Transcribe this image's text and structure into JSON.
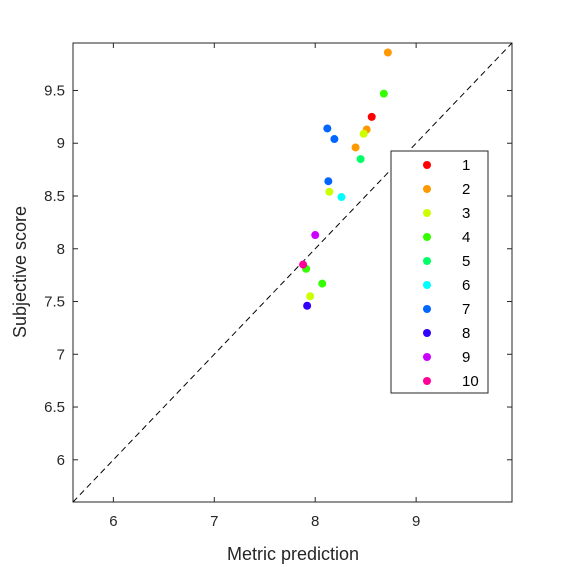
{
  "chart_data": {
    "type": "scatter",
    "xlabel": "Metric prediction",
    "ylabel": "Subjective score",
    "xlim": [
      5.6,
      9.95
    ],
    "ylim": [
      5.6,
      9.95
    ],
    "x_ticks": [
      "6",
      "7",
      "8",
      "9"
    ],
    "y_ticks": [
      "6",
      "6.5",
      "7",
      "7.5",
      "8",
      "8.5",
      "9",
      "9.5"
    ],
    "reference_line": "y = x (dashed)",
    "grid": false,
    "legend_position": "right-center",
    "series": [
      {
        "name": "1",
        "color": "#ff0000",
        "points": [
          [
            8.56,
            9.25
          ]
        ]
      },
      {
        "name": "2",
        "color": "#ff9900",
        "points": [
          [
            8.72,
            9.86
          ],
          [
            8.51,
            9.13
          ],
          [
            8.4,
            8.96
          ]
        ]
      },
      {
        "name": "3",
        "color": "#ccff00",
        "points": [
          [
            8.48,
            9.09
          ],
          [
            8.14,
            8.54
          ],
          [
            7.95,
            7.55
          ]
        ]
      },
      {
        "name": "4",
        "color": "#33ff00",
        "points": [
          [
            8.68,
            9.47
          ],
          [
            8.07,
            7.67
          ],
          [
            7.91,
            7.81
          ]
        ]
      },
      {
        "name": "5",
        "color": "#00ff66",
        "points": [
          [
            8.45,
            8.85
          ]
        ]
      },
      {
        "name": "6",
        "color": "#00ffff",
        "points": [
          [
            8.26,
            8.49
          ]
        ]
      },
      {
        "name": "7",
        "color": "#0066ff",
        "points": [
          [
            8.12,
            9.14
          ],
          [
            8.19,
            9.04
          ],
          [
            8.13,
            8.64
          ]
        ]
      },
      {
        "name": "8",
        "color": "#3300ff",
        "points": [
          [
            7.92,
            7.46
          ]
        ]
      },
      {
        "name": "9",
        "color": "#cc00ff",
        "points": [
          [
            8.0,
            8.13
          ]
        ]
      },
      {
        "name": "10",
        "color": "#ff0099",
        "points": [
          [
            7.88,
            7.85
          ]
        ]
      }
    ]
  }
}
